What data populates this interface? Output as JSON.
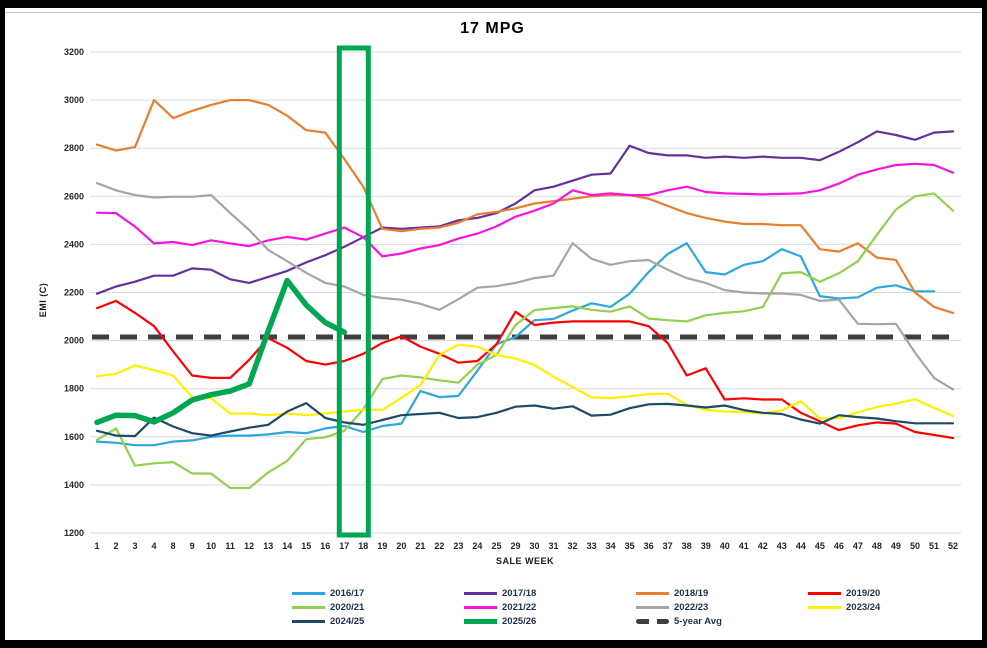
{
  "chart_data": {
    "type": "line",
    "title": "17 MPG",
    "xlabel": "SALE WEEK",
    "ylabel": "EMI (C)",
    "ylim": [
      1200,
      3200
    ],
    "yticks": [
      1200,
      1400,
      1600,
      1800,
      2000,
      2200,
      2400,
      2600,
      2800,
      3000,
      3200
    ],
    "grid": "horizontal-only",
    "legend_position": "bottom",
    "categories": [
      "1",
      "2",
      "3",
      "4",
      "8",
      "9",
      "10",
      "11",
      "12",
      "13",
      "14",
      "15",
      "16",
      "17",
      "18",
      "19",
      "20",
      "21",
      "22",
      "23",
      "24",
      "25",
      "29",
      "30",
      "31",
      "32",
      "33",
      "34",
      "35",
      "36",
      "37",
      "38",
      "39",
      "40",
      "41",
      "42",
      "43",
      "44",
      "45",
      "46",
      "47",
      "48",
      "49",
      "50",
      "51",
      "52"
    ],
    "series": [
      {
        "name": "2016/17",
        "color": "#2EA6DF",
        "width": 2.2,
        "values": [
          1580,
          1575,
          1565,
          1565,
          1580,
          1585,
          1600,
          1605,
          1605,
          1610,
          1620,
          1615,
          1635,
          1645,
          1620,
          1645,
          1655,
          1790,
          1765,
          1770,
          1875,
          1985,
          2015,
          2085,
          2090,
          2125,
          2155,
          2140,
          2195,
          2285,
          2360,
          2405,
          2285,
          2275,
          2315,
          2330,
          2380,
          2350,
          2185,
          2175,
          2180,
          2220,
          2230,
          2205,
          2205,
          null
        ]
      },
      {
        "name": "2017/18",
        "color": "#63309E",
        "width": 2.2,
        "values": [
          2195,
          2225,
          2245,
          2270,
          2270,
          2300,
          2295,
          2255,
          2240,
          2265,
          2290,
          2325,
          2355,
          2390,
          2430,
          2470,
          2465,
          2470,
          2475,
          2500,
          2510,
          2530,
          2570,
          2625,
          2640,
          2665,
          2690,
          2695,
          2810,
          2780,
          2770,
          2770,
          2760,
          2765,
          2760,
          2765,
          2760,
          2760,
          2750,
          2785,
          2825,
          2870,
          2855,
          2835,
          2865,
          2870
        ]
      },
      {
        "name": "2018/19",
        "color": "#E87E2E",
        "width": 2.2,
        "values": [
          2815,
          2790,
          2805,
          3000,
          2925,
          2955,
          2980,
          3000,
          3000,
          2980,
          2935,
          2875,
          2865,
          2755,
          2640,
          2465,
          2455,
          2465,
          2470,
          2490,
          2525,
          2535,
          2550,
          2570,
          2580,
          2590,
          2600,
          2605,
          2605,
          2590,
          2560,
          2530,
          2510,
          2495,
          2485,
          2485,
          2480,
          2480,
          2380,
          2370,
          2405,
          2345,
          2335,
          2200,
          2140,
          2115
        ]
      },
      {
        "name": "2019/20",
        "color": "#FE0000",
        "width": 2.2,
        "values": [
          2135,
          2165,
          2115,
          2060,
          1955,
          1855,
          1845,
          1845,
          1920,
          2010,
          1970,
          1915,
          1900,
          1915,
          1945,
          1990,
          2018,
          1975,
          1945,
          1908,
          1915,
          1985,
          2120,
          2065,
          2075,
          2080,
          2080,
          2080,
          2080,
          2060,
          1990,
          1855,
          1885,
          1755,
          1760,
          1755,
          1755,
          1700,
          1665,
          1628,
          1648,
          1660,
          1655,
          1620,
          1608,
          1595
        ]
      },
      {
        "name": "2020/21",
        "color": "#92D050",
        "width": 2.2,
        "values": [
          1587,
          1635,
          1480,
          1490,
          1495,
          1448,
          1447,
          1387,
          1387,
          1452,
          1500,
          1590,
          1598,
          1625,
          1715,
          1840,
          1855,
          1847,
          1835,
          1825,
          1900,
          1940,
          2065,
          2127,
          2135,
          2142,
          2128,
          2120,
          2142,
          2092,
          2085,
          2080,
          2105,
          2115,
          2122,
          2140,
          2280,
          2285,
          2245,
          2280,
          2330,
          2440,
          2545,
          2600,
          2612,
          2540
        ]
      },
      {
        "name": "2021/22",
        "color": "#F715DE",
        "width": 2.2,
        "values": [
          2532,
          2530,
          2474,
          2404,
          2410,
          2397,
          2417,
          2404,
          2393,
          2417,
          2431,
          2420,
          2445,
          2470,
          2430,
          2350,
          2362,
          2383,
          2397,
          2424,
          2445,
          2475,
          2515,
          2540,
          2570,
          2625,
          2605,
          2612,
          2605,
          2605,
          2625,
          2640,
          2618,
          2612,
          2610,
          2608,
          2610,
          2612,
          2625,
          2653,
          2690,
          2712,
          2730,
          2735,
          2730,
          2698
        ]
      },
      {
        "name": "2022/23",
        "color": "#A5A5A5",
        "width": 2.2,
        "values": [
          2655,
          2625,
          2605,
          2595,
          2598,
          2598,
          2605,
          2530,
          2460,
          2377,
          2330,
          2282,
          2240,
          2225,
          2190,
          2177,
          2170,
          2153,
          2128,
          2172,
          2220,
          2226,
          2240,
          2260,
          2270,
          2405,
          2340,
          2315,
          2330,
          2335,
          2295,
          2260,
          2240,
          2210,
          2200,
          2196,
          2196,
          2190,
          2165,
          2170,
          2070,
          2068,
          2070,
          1950,
          1845,
          1797
        ]
      },
      {
        "name": "2023/24",
        "color": "#FEF000",
        "width": 2.2,
        "values": [
          1852,
          1862,
          1897,
          1877,
          1855,
          1765,
          1760,
          1697,
          1697,
          1690,
          1697,
          1690,
          1697,
          1705,
          1713,
          1712,
          1762,
          1815,
          1940,
          1983,
          1975,
          1940,
          1925,
          1898,
          1850,
          1807,
          1764,
          1761,
          1768,
          1778,
          1779,
          1733,
          1712,
          1705,
          1703,
          1697,
          1711,
          1748,
          1677,
          1677,
          1701,
          1724,
          1738,
          1756,
          1720,
          1686
        ]
      },
      {
        "name": "2024/25",
        "color": "#1D4A66",
        "width": 2.2,
        "values": [
          1625,
          1605,
          1603,
          1680,
          1643,
          1615,
          1605,
          1622,
          1638,
          1650,
          1705,
          1740,
          1678,
          1660,
          1650,
          1670,
          1690,
          1695,
          1700,
          1678,
          1682,
          1700,
          1725,
          1730,
          1717,
          1727,
          1688,
          1692,
          1719,
          1735,
          1737,
          1730,
          1722,
          1730,
          1711,
          1700,
          1695,
          1672,
          1655,
          1690,
          1682,
          1676,
          1665,
          1656,
          1656,
          1656
        ]
      },
      {
        "name": "2025/26",
        "color": "#00A651",
        "width": 5.5,
        "values": [
          1660,
          1690,
          1688,
          1662,
          1700,
          1753,
          1775,
          1790,
          1820,
          2040,
          2250,
          2148,
          2075,
          2035,
          null,
          null,
          null,
          null,
          null,
          null,
          null,
          null,
          null,
          null,
          null,
          null,
          null,
          null,
          null,
          null,
          null,
          null,
          null,
          null,
          null,
          null,
          null,
          null,
          null,
          null,
          null,
          null,
          null,
          null,
          null,
          null
        ]
      }
    ],
    "avg_line": {
      "name": "5-year Avg",
      "value": 2015,
      "color": "#3F3F3F",
      "width": 5,
      "dash": "17 11"
    },
    "highlight_box": {
      "from_category": "17",
      "to_category": "18",
      "color": "#00A651",
      "border_width": 5
    }
  }
}
